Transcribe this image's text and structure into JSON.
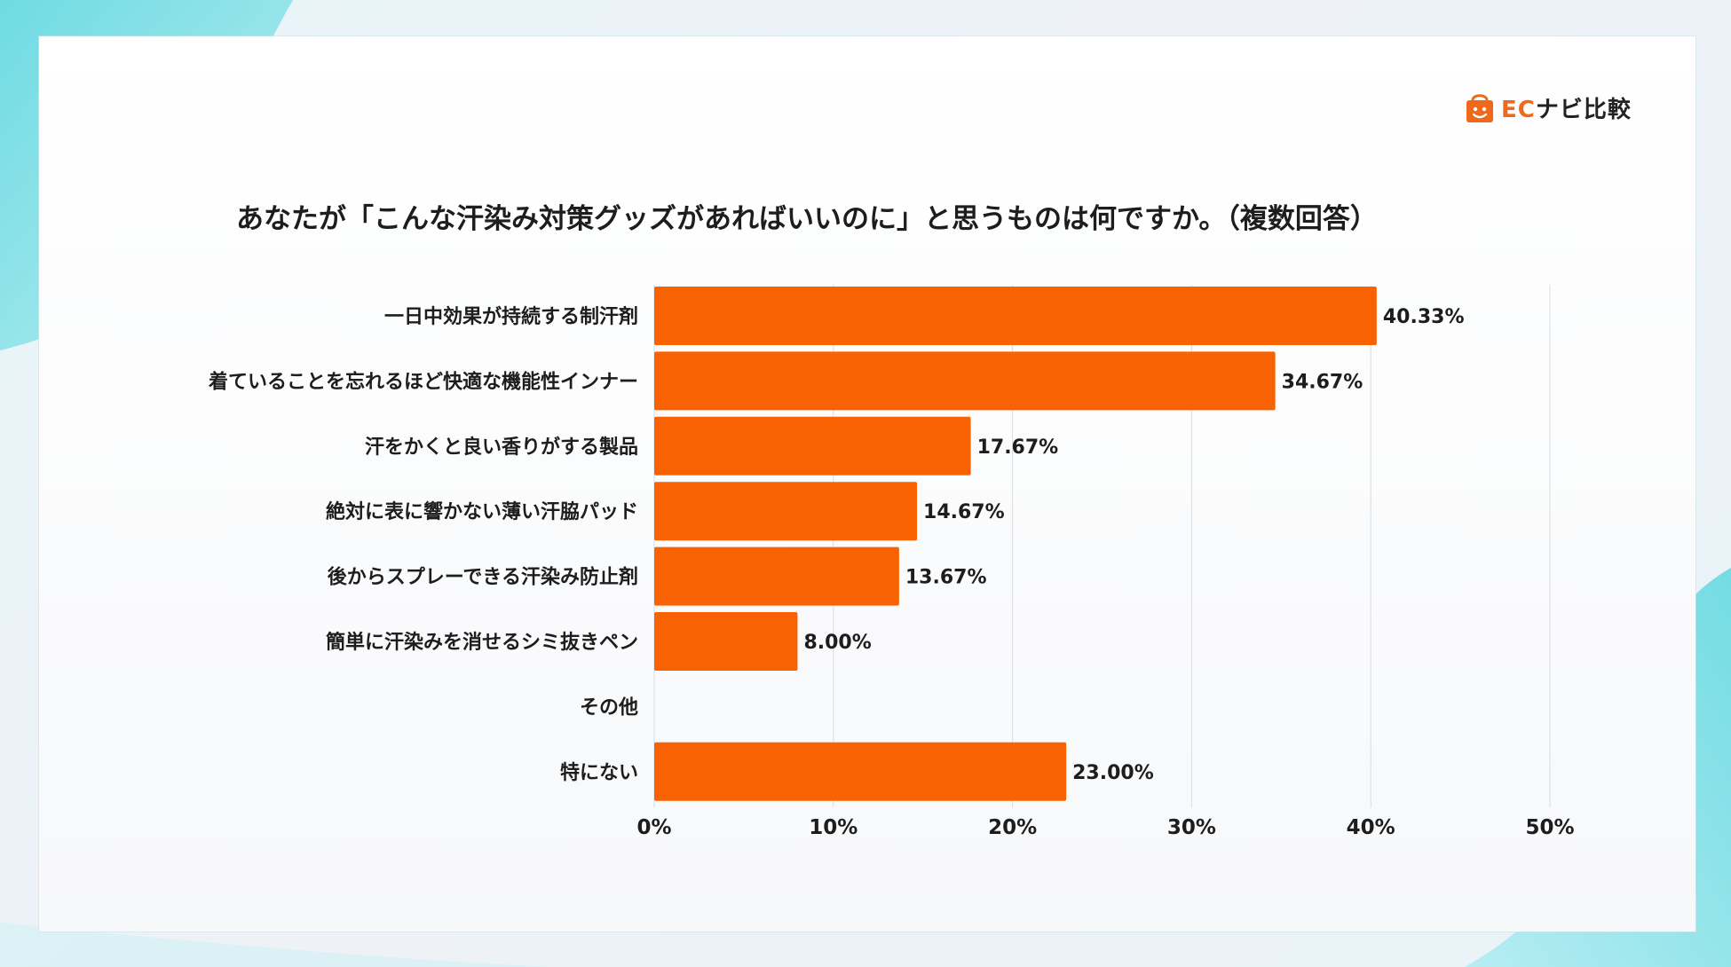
{
  "colors": {
    "bar": "#f96203",
    "grid": "#d9dde2",
    "text": "#1d1d1d",
    "accent": "#ee6a1a",
    "teal": "#7fe0e6"
  },
  "logo": {
    "icon": "shopping-bag-face-icon",
    "ec": "EC",
    "rest": "ナビ比較"
  },
  "chart_data": {
    "type": "bar",
    "orientation": "horizontal",
    "title": "あなたが「こんな汗染み対策グッズがあればいいのに」と思うものは何ですか。（複数回答）",
    "categories": [
      "一日中効果が持続する制汗剤",
      "着ていることを忘れるほど快適な機能性インナー",
      "汗をかくと良い香りがする製品",
      "絶対に表に響かない薄い汗脇パッド",
      "後からスプレーできる汗染み防止剤",
      "簡単に汗染みを消せるシミ抜きペン",
      "その他",
      "特にない"
    ],
    "values": [
      40.33,
      34.67,
      17.67,
      14.67,
      13.67,
      8.0,
      0,
      23.0
    ],
    "data_labels": [
      "40.33%",
      "34.67%",
      "17.67%",
      "14.67%",
      "13.67%",
      "8.00%",
      "",
      "23.00%"
    ],
    "x_ticks": [
      0,
      10,
      20,
      30,
      40,
      50
    ],
    "x_tick_labels": [
      "0%",
      "10%",
      "20%",
      "30%",
      "40%",
      "50%"
    ],
    "xlim": [
      0,
      50
    ],
    "grid": true,
    "legend": "none"
  }
}
